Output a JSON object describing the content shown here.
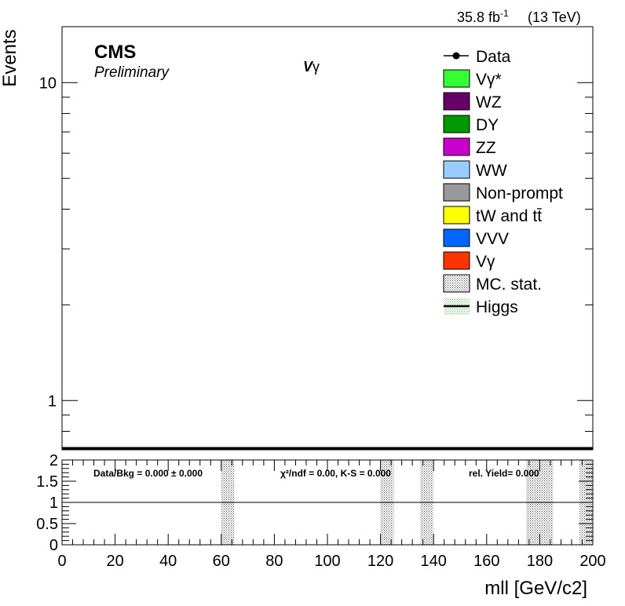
{
  "header": {
    "lumi_label": "35.8 fb",
    "lumi_exp": "-1",
    "energy_label": "(13 TeV)"
  },
  "cms": {
    "label": "CMS",
    "sublabel": "Preliminary"
  },
  "channel": {
    "label_main": "V",
    "label_greek": "γ"
  },
  "legend": {
    "placement": "top-right",
    "entries": [
      {
        "label": "Data",
        "style": "marker",
        "color": "#000000"
      },
      {
        "label": "Vγ*",
        "style": "box",
        "color": "#33ff33"
      },
      {
        "label": "WZ",
        "style": "box",
        "color": "#660066"
      },
      {
        "label": "DY",
        "style": "box",
        "color": "#009900"
      },
      {
        "label": "ZZ",
        "style": "box",
        "color": "#cc00cc"
      },
      {
        "label": "WW",
        "style": "box",
        "color": "#99ccff"
      },
      {
        "label": "Non-prompt",
        "style": "box",
        "color": "#999999"
      },
      {
        "label": "tW and tt̄",
        "style": "box",
        "color": "#ffff00"
      },
      {
        "label": "VVV",
        "style": "box",
        "color": "#0066ff"
      },
      {
        "label": "Vγ",
        "style": "box",
        "color": "#ff3300"
      },
      {
        "label": "MC. stat.",
        "style": "hatched",
        "color": "#000000"
      },
      {
        "label": "Higgs",
        "style": "line",
        "color": "#000000"
      }
    ]
  },
  "ratio_stats": {
    "data_bkg": "Data/Bkg = 0.000 ± 0.000",
    "chi2": "χ²/ndf = 0.00,   K-S = 0.000",
    "rel_yield": "rel. Yield= 0.000"
  },
  "chart_data": [
    {
      "type": "bar",
      "panel": "main",
      "ylabel": "Events",
      "y_scale": "log",
      "ylim": [
        0.7,
        15
      ],
      "xlim": [
        0,
        200
      ],
      "y_tick_labels": [
        {
          "value": 1,
          "label": "1"
        },
        {
          "value": 10,
          "label": "10"
        }
      ],
      "series": [],
      "grid": false
    },
    {
      "type": "bar",
      "panel": "ratio",
      "xlabel": "mll [GeV/c2]",
      "ylim": [
        0,
        2
      ],
      "xlim": [
        0,
        200
      ],
      "y_tick_labels": [
        {
          "value": 0,
          "label": "0"
        },
        {
          "value": 0.5,
          "label": "0.5"
        },
        {
          "value": 1,
          "label": "1"
        },
        {
          "value": 1.5,
          "label": "1.5"
        },
        {
          "value": 2,
          "label": "2"
        }
      ],
      "x_tick_labels": [
        {
          "value": 0,
          "label": "0"
        },
        {
          "value": 20,
          "label": "20"
        },
        {
          "value": 40,
          "label": "40"
        },
        {
          "value": 60,
          "label": "60"
        },
        {
          "value": 80,
          "label": "80"
        },
        {
          "value": 100,
          "label": "100"
        },
        {
          "value": 120,
          "label": "120"
        },
        {
          "value": 140,
          "label": "140"
        },
        {
          "value": 160,
          "label": "160"
        },
        {
          "value": 180,
          "label": "180"
        },
        {
          "value": 200,
          "label": "200"
        }
      ],
      "reference_line": 1,
      "uncertainty_bands": [
        {
          "x_from": 60,
          "x_to": 65
        },
        {
          "x_from": 120,
          "x_to": 125
        },
        {
          "x_from": 135,
          "x_to": 140
        },
        {
          "x_from": 175,
          "x_to": 185
        },
        {
          "x_from": 195,
          "x_to": 200
        }
      ],
      "grid": false
    }
  ]
}
